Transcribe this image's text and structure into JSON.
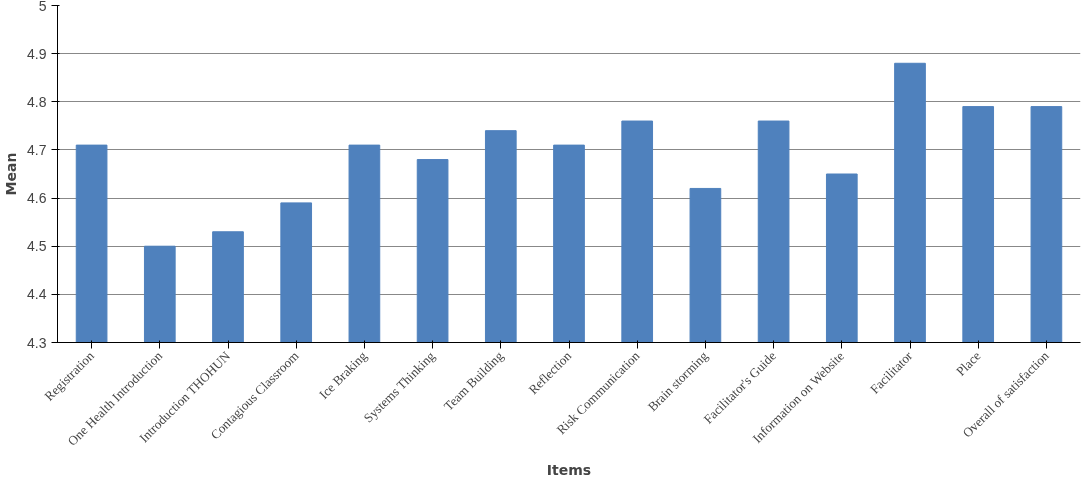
{
  "chart_data": {
    "type": "bar",
    "xlabel": "Items",
    "ylabel": "Mean",
    "categories": [
      "Registration",
      "One Health Introduction",
      "Introduction THOHUN",
      "Contagious Classroom",
      "Ice Braking",
      "Systems Thinking",
      "Team Building",
      "Reflection",
      "Risk Communication",
      "Brain storming",
      "Facilitator's Guide",
      "Information on Website",
      "Facilitator",
      "Place",
      "Overall of satisfaction"
    ],
    "values": [
      4.71,
      4.5,
      4.53,
      4.59,
      4.71,
      4.68,
      4.74,
      4.71,
      4.76,
      4.62,
      4.76,
      4.65,
      4.88,
      4.79,
      4.79
    ],
    "color": "#4f81bd",
    "ylim": [
      4.3,
      5
    ],
    "yticks": [
      4.3,
      4.4,
      4.5,
      4.6,
      4.7,
      4.8,
      4.9,
      5
    ],
    "grid": "y"
  }
}
